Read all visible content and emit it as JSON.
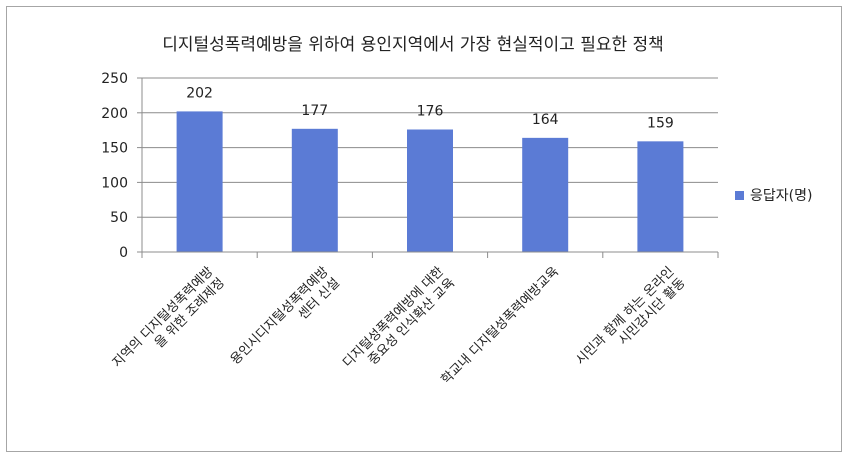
{
  "chart_data": {
    "type": "bar",
    "title": "디지털성폭력예방을 위하여 용인지역에서  가장  현실적이고 필요한 정책",
    "categories": [
      [
        "지역의 디지털성폭력예방",
        "을  위한 조례제정"
      ],
      [
        "용인시디지털성폭력예방",
        "센터 신설"
      ],
      [
        "디지털성폭력예방에 대한",
        "중요성 인식확산 교육"
      ],
      [
        "학교내 디지털성폭력예방교육"
      ],
      [
        "시민과 함께 하는 온라인",
        "시민감시단 활동"
      ]
    ],
    "series": [
      {
        "name": "응답자(명)",
        "values": [
          202,
          177,
          176,
          164,
          159
        ],
        "color": "#5b7bd5"
      }
    ],
    "ylim": [
      0,
      250
    ],
    "yticks": [
      0,
      50,
      100,
      150,
      200,
      250
    ],
    "grid": true,
    "legend": "right"
  }
}
